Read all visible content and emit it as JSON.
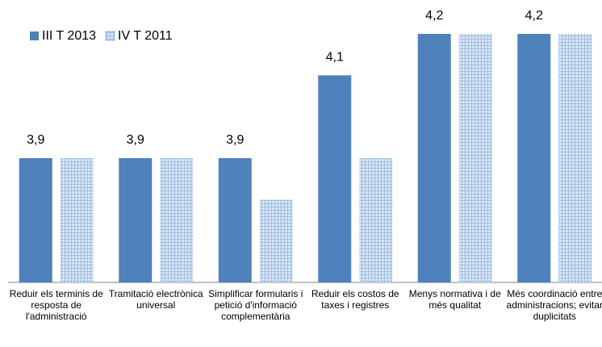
{
  "chart_data": {
    "type": "bar",
    "categories": [
      "Reduir els terminis de resposta de l'administració",
      "Tramitació electrònica universal",
      "Simplificar formularis i petició d'informació complementària",
      "Reduir els costos de taxes i registres",
      "Menys normativa i de més qualitat",
      "Més coordinació entre administracions; evitar duplicitats"
    ],
    "series": [
      {
        "name": "III T 2013",
        "color": "#4f81bd",
        "values": [
          3.9,
          3.9,
          3.9,
          4.1,
          4.2,
          4.2
        ],
        "value_labels": [
          "3,9",
          "3,9",
          "3,9",
          "4,1",
          "4,2",
          "4,2"
        ]
      },
      {
        "name": "IV T 2011",
        "color": "#dbe5f1",
        "pattern": "grid",
        "values": [
          3.9,
          3.9,
          3.8,
          3.9,
          4.2,
          4.2
        ]
      }
    ],
    "ylim": [
      3.6,
      4.2
    ],
    "legend": "top-left"
  }
}
